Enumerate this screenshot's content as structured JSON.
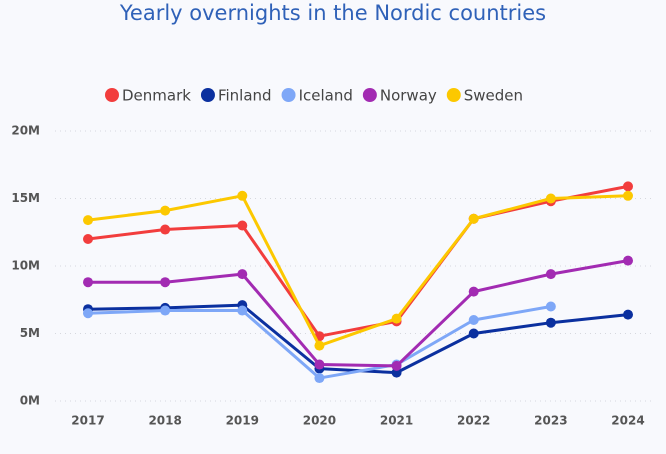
{
  "chart_data": {
    "type": "line",
    "title": "Yearly overnights in the Nordic countries",
    "categories": [
      "2017",
      "2018",
      "2019",
      "2020",
      "2021",
      "2022",
      "2023",
      "2024"
    ],
    "series": [
      {
        "name": "Denmark",
        "color": "#f23d3d",
        "values": [
          12000000,
          12700000,
          13000000,
          4800000,
          5900000,
          13500000,
          14800000,
          15900000
        ]
      },
      {
        "name": "Finland",
        "color": "#0b309f",
        "values": [
          6800000,
          6900000,
          7100000,
          2400000,
          2100000,
          5000000,
          5800000,
          6400000
        ]
      },
      {
        "name": "Iceland",
        "color": "#7ea7f7",
        "values": [
          6500000,
          6700000,
          6700000,
          1700000,
          2700000,
          6000000,
          7000000,
          null
        ]
      },
      {
        "name": "Norway",
        "color": "#a22bb2",
        "values": [
          8800000,
          8800000,
          9400000,
          2700000,
          2600000,
          8100000,
          9400000,
          10400000
        ]
      },
      {
        "name": "Sweden",
        "color": "#fcc800",
        "values": [
          13400000,
          14100000,
          15200000,
          4100000,
          6100000,
          13500000,
          15000000,
          15200000
        ]
      }
    ],
    "ylim": [
      0,
      20000000
    ],
    "yticks": [
      {
        "value": 0,
        "label": "0M"
      },
      {
        "value": 5000000,
        "label": "5M"
      },
      {
        "value": 10000000,
        "label": "10M"
      },
      {
        "value": 15000000,
        "label": "15M"
      },
      {
        "value": 20000000,
        "label": "20M"
      }
    ],
    "grid": true
  }
}
